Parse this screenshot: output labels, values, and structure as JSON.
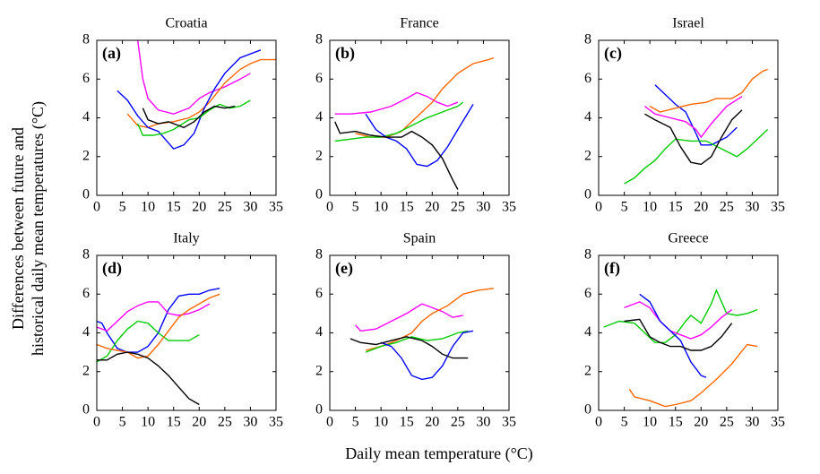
{
  "chart_data": [
    {
      "type": "line",
      "title": "Croatia",
      "panel_label": "(a)",
      "xlim": [
        0,
        35
      ],
      "xticks": [
        0,
        5,
        10,
        15,
        20,
        25,
        30,
        35
      ],
      "ylim": [
        0,
        8
      ],
      "yticks": [
        0,
        2,
        4,
        6,
        8
      ],
      "series": [
        {
          "color": "#ff00ff",
          "x": [
            8,
            9,
            10,
            12,
            15,
            18,
            20,
            22,
            25,
            28,
            30
          ],
          "values": [
            8,
            6,
            5,
            4.4,
            4.2,
            4.5,
            5,
            5.3,
            5.6,
            6,
            6.3
          ]
        },
        {
          "color": "#ff6600",
          "x": [
            6,
            8,
            10,
            12,
            15,
            18,
            20,
            22,
            25,
            28,
            30,
            32,
            35
          ],
          "values": [
            4.2,
            3.6,
            3.5,
            3.7,
            3.8,
            4,
            4.3,
            4.8,
            5.8,
            6.5,
            6.8,
            7,
            7
          ]
        },
        {
          "color": "#0000ff",
          "x": [
            4,
            6,
            8,
            10,
            12,
            14,
            15,
            17,
            19,
            21,
            23,
            25,
            28,
            32
          ],
          "values": [
            5.4,
            4.9,
            4.1,
            3.5,
            3.3,
            2.7,
            2.4,
            2.6,
            3.2,
            4.5,
            5.5,
            6.3,
            7.1,
            7.5
          ]
        },
        {
          "color": "#00cc00",
          "x": [
            8,
            9,
            11,
            13,
            15,
            18,
            20,
            22,
            24,
            26,
            28,
            30
          ],
          "values": [
            3.7,
            3.1,
            3.1,
            3.2,
            3.4,
            3.9,
            4,
            4.4,
            4.7,
            4.5,
            4.6,
            4.9
          ]
        },
        {
          "color": "#000000",
          "x": [
            9,
            10,
            12,
            14,
            16,
            17,
            19,
            21,
            23,
            25,
            27
          ],
          "values": [
            4.5,
            3.9,
            3.7,
            3.8,
            3.6,
            3.5,
            3.8,
            4.3,
            4.6,
            4.5,
            4.6
          ]
        }
      ]
    },
    {
      "type": "line",
      "title": "France",
      "panel_label": "(b)",
      "xlim": [
        0,
        35
      ],
      "xticks": [
        0,
        5,
        10,
        15,
        20,
        25,
        30,
        35
      ],
      "ylim": [
        0,
        8
      ],
      "yticks": [
        0,
        2,
        4,
        6,
        8
      ],
      "series": [
        {
          "color": "#ff00ff",
          "x": [
            1,
            4,
            8,
            12,
            15,
            17,
            19,
            21,
            23,
            25
          ],
          "values": [
            4.2,
            4.2,
            4.3,
            4.6,
            5,
            5.3,
            5.1,
            4.8,
            4.6,
            4.8
          ]
        },
        {
          "color": "#ff6600",
          "x": [
            5,
            8,
            11,
            14,
            16,
            18,
            20,
            22,
            25,
            28,
            31,
            32
          ],
          "values": [
            3.2,
            3,
            3,
            3.3,
            3.8,
            4.3,
            4.8,
            5.5,
            6.3,
            6.8,
            7,
            7.1
          ]
        },
        {
          "color": "#00cc00",
          "x": [
            1,
            4,
            7,
            10,
            13,
            16,
            19,
            22,
            25,
            26
          ],
          "values": [
            2.8,
            2.9,
            3,
            3,
            3.2,
            3.6,
            4,
            4.3,
            4.6,
            4.8
          ]
        },
        {
          "color": "#0000ff",
          "x": [
            7,
            9,
            11,
            13,
            15,
            17,
            19,
            21,
            23,
            25,
            28
          ],
          "values": [
            4.2,
            3.4,
            3,
            2.8,
            2.4,
            1.6,
            1.5,
            1.8,
            2.5,
            3.4,
            4.7
          ]
        },
        {
          "color": "#000000",
          "x": [
            1,
            2,
            5,
            8,
            11,
            14,
            16,
            18,
            20,
            22,
            24,
            25
          ],
          "values": [
            3.8,
            3.2,
            3.3,
            3.1,
            3,
            3,
            3.3,
            3,
            2.6,
            1.9,
            0.8,
            0.3
          ]
        }
      ]
    },
    {
      "type": "line",
      "title": "Israel",
      "panel_label": "(c)",
      "xlim": [
        0,
        35
      ],
      "xticks": [
        0,
        5,
        10,
        15,
        20,
        25,
        30,
        35
      ],
      "ylim": [
        0,
        8
      ],
      "yticks": [
        0,
        2,
        4,
        6,
        8
      ],
      "series": [
        {
          "color": "#0000ff",
          "x": [
            11,
            13,
            15,
            17,
            19,
            20,
            22,
            25,
            27
          ],
          "values": [
            5.7,
            5.2,
            4.7,
            4.3,
            3.2,
            2.6,
            2.6,
            3,
            3.5
          ]
        },
        {
          "color": "#ff6600",
          "x": [
            10,
            12,
            15,
            18,
            21,
            23,
            26,
            28,
            30,
            32,
            33
          ],
          "values": [
            4.6,
            4.3,
            4.5,
            4.7,
            4.8,
            5,
            5,
            5.3,
            6,
            6.4,
            6.5
          ]
        },
        {
          "color": "#ff00ff",
          "x": [
            9,
            11,
            14,
            17,
            19,
            20,
            22,
            25,
            28
          ],
          "values": [
            4.6,
            4.2,
            4,
            3.8,
            3.4,
            3,
            3.7,
            4.6,
            5.1
          ]
        },
        {
          "color": "#00cc00",
          "x": [
            5,
            7,
            9,
            11,
            13,
            15,
            18,
            21,
            24,
            27,
            29,
            31,
            33
          ],
          "values": [
            0.6,
            0.9,
            1.4,
            1.8,
            2.4,
            2.9,
            2.8,
            2.8,
            2.4,
            2,
            2.4,
            2.9,
            3.4
          ]
        },
        {
          "color": "#000000",
          "x": [
            9,
            11,
            14,
            16,
            18,
            20,
            22,
            24,
            26,
            28
          ],
          "values": [
            4.2,
            3.9,
            3.5,
            2.5,
            1.7,
            1.6,
            2,
            3,
            3.9,
            4.4
          ]
        }
      ]
    },
    {
      "type": "line",
      "title": "Italy",
      "panel_label": "(d)",
      "xlim": [
        0,
        35
      ],
      "xticks": [
        0,
        5,
        10,
        15,
        20,
        25,
        30,
        35
      ],
      "ylim": [
        0,
        8
      ],
      "yticks": [
        0,
        2,
        4,
        6,
        8
      ],
      "series": [
        {
          "color": "#0000ff",
          "x": [
            0,
            1,
            2,
            4,
            6,
            8,
            10,
            12,
            14,
            16,
            18,
            20,
            22,
            24
          ],
          "values": [
            4.6,
            4.5,
            4,
            3.2,
            3,
            3,
            3.3,
            4,
            5.2,
            5.9,
            6,
            6,
            6.2,
            6.3
          ]
        },
        {
          "color": "#ff00ff",
          "x": [
            0,
            2,
            4,
            6,
            8,
            10,
            12,
            14,
            16,
            18,
            20,
            22
          ],
          "values": [
            4.3,
            4.1,
            4.6,
            5.1,
            5.4,
            5.6,
            5.6,
            5,
            4.9,
            5,
            5.2,
            5.5
          ]
        },
        {
          "color": "#00cc00",
          "x": [
            0,
            2,
            4,
            6,
            8,
            10,
            12,
            14,
            16,
            18,
            20
          ],
          "values": [
            2.5,
            2.8,
            3.6,
            4.2,
            4.6,
            4.5,
            4,
            3.6,
            3.6,
            3.6,
            3.9
          ]
        },
        {
          "color": "#ff6600",
          "x": [
            0,
            2,
            4,
            6,
            8,
            10,
            12,
            14,
            16,
            18,
            20,
            22,
            24
          ],
          "values": [
            3.4,
            3.2,
            3.1,
            3,
            2.7,
            2.8,
            3.4,
            4.1,
            4.8,
            5.2,
            5.5,
            5.8,
            6
          ]
        },
        {
          "color": "#000000",
          "x": [
            0,
            2,
            4,
            6,
            8,
            10,
            12,
            14,
            16,
            18,
            20
          ],
          "values": [
            2.6,
            2.6,
            2.9,
            3,
            2.9,
            2.7,
            2.3,
            1.8,
            1.2,
            0.6,
            0.3
          ]
        }
      ]
    },
    {
      "type": "line",
      "title": "Spain",
      "panel_label": "(e)",
      "xlim": [
        0,
        35
      ],
      "xticks": [
        0,
        5,
        10,
        15,
        20,
        25,
        30,
        35
      ],
      "ylim": [
        0,
        8
      ],
      "yticks": [
        0,
        2,
        4,
        6,
        8
      ],
      "series": [
        {
          "color": "#ff00ff",
          "x": [
            5,
            6,
            9,
            12,
            15,
            18,
            20,
            22,
            24,
            26
          ],
          "values": [
            4.4,
            4.1,
            4.2,
            4.6,
            5,
            5.5,
            5.3,
            5.1,
            4.8,
            4.9
          ]
        },
        {
          "color": "#ff6600",
          "x": [
            7,
            10,
            13,
            16,
            18,
            20,
            23,
            26,
            29,
            32
          ],
          "values": [
            3.1,
            3.3,
            3.6,
            4,
            4.6,
            5,
            5.4,
            6,
            6.2,
            6.3
          ]
        },
        {
          "color": "#00cc00",
          "x": [
            7,
            10,
            13,
            16,
            19,
            22,
            25,
            27
          ],
          "values": [
            3,
            3.3,
            3.5,
            3.8,
            3.6,
            3.7,
            4,
            4.1
          ]
        },
        {
          "color": "#0000ff",
          "x": [
            10,
            12,
            14,
            16,
            18,
            20,
            22,
            24,
            26,
            28
          ],
          "values": [
            3.5,
            3.3,
            2.7,
            1.8,
            1.6,
            1.7,
            2.3,
            3.3,
            4,
            4.1
          ]
        },
        {
          "color": "#000000",
          "x": [
            4,
            6,
            9,
            12,
            15,
            18,
            20,
            22,
            24,
            27
          ],
          "values": [
            3.7,
            3.5,
            3.4,
            3.6,
            3.8,
            3.6,
            3.3,
            2.9,
            2.7,
            2.7
          ]
        }
      ]
    },
    {
      "type": "line",
      "title": "Greece",
      "panel_label": "(f)",
      "xlim": [
        0,
        35
      ],
      "xticks": [
        0,
        5,
        10,
        15,
        20,
        25,
        30,
        35
      ],
      "ylim": [
        0,
        8
      ],
      "yticks": [
        0,
        2,
        4,
        6,
        8
      ],
      "series": [
        {
          "color": "#00cc00",
          "x": [
            1,
            4,
            7,
            9,
            11,
            13,
            15,
            17,
            18,
            20,
            22,
            23,
            25,
            27,
            29,
            31
          ],
          "values": [
            4.3,
            4.6,
            4.5,
            4,
            3.5,
            3.5,
            3.9,
            4.6,
            4.9,
            4.5,
            5.5,
            6.2,
            5,
            4.9,
            5,
            5.2
          ]
        },
        {
          "color": "#ff00ff",
          "x": [
            5,
            8,
            10,
            12,
            14,
            16,
            18,
            20,
            22,
            24,
            26
          ],
          "values": [
            5.3,
            5.6,
            5.3,
            4.6,
            4.1,
            3.9,
            3.7,
            3.9,
            4.3,
            4.8,
            5.2
          ]
        },
        {
          "color": "#0000ff",
          "x": [
            8,
            10,
            12,
            14,
            16,
            18,
            20,
            21
          ],
          "values": [
            6,
            5.6,
            4.6,
            4.1,
            3.6,
            2.5,
            1.8,
            1.7
          ]
        },
        {
          "color": "#000000",
          "x": [
            5,
            8,
            10,
            12,
            14,
            16,
            18,
            20,
            22,
            24,
            26
          ],
          "values": [
            4.6,
            4.7,
            3.8,
            3.5,
            3.3,
            3.3,
            3.1,
            3.1,
            3.3,
            3.8,
            4.5
          ]
        },
        {
          "color": "#ff6600",
          "x": [
            6,
            7,
            10,
            13,
            15,
            18,
            20,
            23,
            26,
            29,
            31
          ],
          "values": [
            1.1,
            0.7,
            0.5,
            0.2,
            0.3,
            0.5,
            0.9,
            1.6,
            2.4,
            3.4,
            3.3
          ]
        }
      ]
    }
  ],
  "figure": {
    "xlabel": "Daily mean temperature (°C)",
    "ylabel": [
      "Differences between future and",
      "historical daily mean temperatures (°C)"
    ]
  }
}
